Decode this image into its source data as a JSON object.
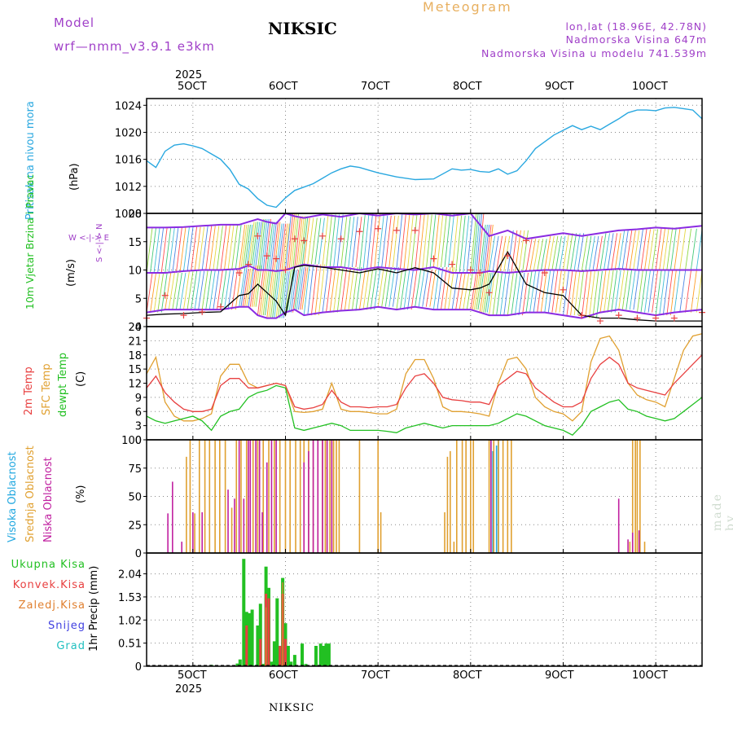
{
  "header": {
    "model_label": "Model",
    "model_name": "wrf—nmm_v3.9.1 e3km",
    "station_title": "NIKSIC",
    "meteogram_label": "Meteogram",
    "coords": "lon,lat (18.96E, 42.78N)",
    "elevation": "Nadmorska Visina 647m",
    "model_elevation": "Nadmorska Visina u modelu 741.539m"
  },
  "colors": {
    "pressure": "#2aa8e0",
    "wind_speed": "#000000",
    "wind_gust": "#e84040",
    "wind_dir_high": "#8a2be2",
    "t2m": "#e84040",
    "tsfc": "#e0a030",
    "dewpoint": "#22c022",
    "cloud_high": "#22a8e0",
    "cloud_mid": "#e0a030",
    "cloud_low": "#c020a0",
    "precip_total": "#22c022",
    "precip_conv": "#e84040",
    "precip_frozen": "#e08030",
    "precip_snow": "#4040e0",
    "precip_hail": "#20c0c0"
  },
  "axis": {
    "year_top": "2025",
    "year_bottom": "2025",
    "day_labels": [
      "5OCT",
      "6OCT",
      "7OCT",
      "8OCT",
      "9OCT",
      "10OCT"
    ],
    "days_start": 4.5,
    "days_end": 10.5
  },
  "footer": {
    "station": "NIKSIC",
    "credit": "made by Angel"
  },
  "chart_data": [
    {
      "type": "line",
      "panel": "pressure",
      "title": "Pritisak na nivou mora",
      "ylabel": "(hPa)",
      "ylim": [
        1008,
        1025
      ],
      "yticks": [
        "1008",
        "1012",
        "1016",
        "1020",
        "1024"
      ],
      "x": [
        4.5,
        4.6,
        4.7,
        4.8,
        4.9,
        5.0,
        5.1,
        5.2,
        5.3,
        5.4,
        5.5,
        5.6,
        5.7,
        5.8,
        5.9,
        6.0,
        6.1,
        6.2,
        6.3,
        6.4,
        6.5,
        6.6,
        6.7,
        6.8,
        6.9,
        7.0,
        7.2,
        7.4,
        7.6,
        7.8,
        7.9,
        8.0,
        8.1,
        8.2,
        8.3,
        8.4,
        8.5,
        8.6,
        8.7,
        8.8,
        8.9,
        9.0,
        9.1,
        9.2,
        9.3,
        9.4,
        9.5,
        9.6,
        9.7,
        9.8,
        9.9,
        10.0,
        10.1,
        10.2,
        10.3,
        10.4,
        10.5
      ],
      "series": [
        {
          "name": "MSLP",
          "values": [
            1015.8,
            1014.8,
            1017.2,
            1018.1,
            1018.3,
            1018.0,
            1017.6,
            1016.8,
            1016.0,
            1014.5,
            1012.3,
            1011.6,
            1010.2,
            1009.2,
            1008.9,
            1010.3,
            1011.4,
            1011.9,
            1012.4,
            1013.2,
            1014.0,
            1014.6,
            1015.0,
            1014.8,
            1014.4,
            1014.0,
            1013.4,
            1013.0,
            1013.1,
            1014.6,
            1014.4,
            1014.5,
            1014.2,
            1014.1,
            1014.6,
            1013.8,
            1014.3,
            1015.8,
            1017.6,
            1018.6,
            1019.6,
            1020.3,
            1021.0,
            1020.4,
            1020.9,
            1020.4,
            1021.2,
            1022.0,
            1022.9,
            1023.3,
            1023.3,
            1023.2,
            1023.6,
            1023.7,
            1023.5,
            1023.3,
            1022.0
          ]
        }
      ]
    },
    {
      "type": "line",
      "panel": "wind",
      "title": "10m Vjetar Brzina i Pravac",
      "ylabel": "(m/s)",
      "compass_label": "W <-|-> E",
      "compass_label_ns": "S <-|-> N",
      "ylim": [
        0,
        20
      ],
      "yticks": [
        "0",
        "5",
        "10",
        "15",
        "20"
      ],
      "x": [
        4.5,
        4.7,
        4.9,
        5.1,
        5.3,
        5.5,
        5.6,
        5.7,
        5.8,
        5.9,
        6.0,
        6.1,
        6.2,
        6.4,
        6.6,
        6.8,
        7.0,
        7.2,
        7.4,
        7.6,
        7.8,
        8.0,
        8.1,
        8.2,
        8.4,
        8.6,
        8.8,
        9.0,
        9.2,
        9.4,
        9.6,
        9.8,
        10.0,
        10.2,
        10.5
      ],
      "series": [
        {
          "name": "speed",
          "values": [
            2,
            2.2,
            2.3,
            2.5,
            2.6,
            5.5,
            5.8,
            7.5,
            6,
            4.5,
            2,
            10.5,
            10.8,
            10.5,
            10,
            9.5,
            10.2,
            9.5,
            10.4,
            9.5,
            6.8,
            6.5,
            6.8,
            7.5,
            13.2,
            7.5,
            6,
            5.5,
            2,
            1.5,
            1.5,
            1.2,
            1,
            1,
            1
          ]
        },
        {
          "name": "gust",
          "values": [
            1.5,
            5.5,
            2,
            2.6,
            3.5,
            9.5,
            11,
            16,
            12.5,
            12,
            10,
            15.5,
            15.2,
            16,
            15.5,
            16.8,
            17.3,
            17,
            17,
            12,
            11,
            10,
            9.5,
            6,
            12.5,
            15.2,
            9.5,
            6.5,
            2,
            1,
            2,
            1.5,
            1.5,
            1.5,
            2.5
          ]
        },
        {
          "name": "direction_high",
          "values": [
            17.5,
            17.5,
            17.6,
            17.8,
            18,
            18,
            18.5,
            19,
            18.5,
            18.2,
            20,
            19.5,
            19.2,
            19.8,
            19.4,
            20,
            19.6,
            20,
            19.8,
            20,
            19.6,
            20,
            18,
            16,
            17,
            15.5,
            16,
            16.5,
            16,
            16.5,
            17,
            17.2,
            17.5,
            17.3,
            17.8
          ]
        },
        {
          "name": "direction_mid",
          "values": [
            9.5,
            9.5,
            9.8,
            10,
            10,
            10.2,
            10.8,
            10,
            10,
            9.8,
            10,
            10.5,
            11,
            10.5,
            10.5,
            10,
            10.5,
            10.2,
            10,
            10.5,
            9.5,
            9.5,
            9.5,
            9.8,
            9.5,
            9.8,
            10,
            10,
            9.8,
            10,
            10.2,
            10,
            10,
            10,
            10
          ]
        },
        {
          "name": "direction_low",
          "values": [
            2.5,
            3,
            3,
            3,
            3,
            3.5,
            3.5,
            2,
            1.5,
            1.5,
            2.5,
            3,
            2,
            2.5,
            2.8,
            3,
            3.5,
            3,
            3.5,
            3,
            3,
            3,
            2.5,
            2,
            2,
            2.5,
            2.5,
            2,
            1.5,
            2.5,
            3,
            2.5,
            2,
            2.5,
            3
          ]
        }
      ]
    },
    {
      "type": "line",
      "panel": "temperature",
      "labels": [
        "2m Temp",
        "SFC Temp",
        "dewpt Temp"
      ],
      "ylabel": "(C)",
      "ylim": [
        0,
        24
      ],
      "yticks": [
        "0",
        "3",
        "6",
        "9",
        "12",
        "15",
        "18",
        "21",
        "24"
      ],
      "x": [
        4.5,
        4.6,
        4.7,
        4.8,
        4.9,
        5.0,
        5.1,
        5.2,
        5.3,
        5.4,
        5.5,
        5.6,
        5.7,
        5.8,
        5.9,
        6.0,
        6.1,
        6.2,
        6.3,
        6.4,
        6.5,
        6.6,
        6.7,
        6.8,
        6.9,
        7.0,
        7.1,
        7.2,
        7.3,
        7.4,
        7.5,
        7.6,
        7.7,
        7.8,
        7.9,
        8.0,
        8.1,
        8.2,
        8.3,
        8.4,
        8.5,
        8.6,
        8.7,
        8.8,
        8.9,
        9.0,
        9.1,
        9.2,
        9.3,
        9.4,
        9.5,
        9.6,
        9.7,
        9.8,
        9.9,
        10.0,
        10.1,
        10.2,
        10.3,
        10.4,
        10.5
      ],
      "series": [
        {
          "name": "2m Temp",
          "values": [
            11,
            13.5,
            10,
            8,
            6.5,
            6,
            6,
            6.5,
            11.5,
            13,
            13,
            11,
            11,
            11.5,
            12,
            11.5,
            7,
            6.5,
            6.8,
            7.5,
            10.5,
            8,
            7,
            7,
            6.8,
            7,
            7,
            7.5,
            11,
            13.5,
            14,
            12,
            9,
            8.5,
            8.3,
            8,
            8,
            7.5,
            11.5,
            13,
            14.5,
            14,
            11,
            9.5,
            8,
            7,
            7,
            8,
            13,
            16,
            17.5,
            16,
            12,
            11,
            10.5,
            10,
            9.5,
            12,
            14,
            16,
            18
          ]
        },
        {
          "name": "SFC Temp",
          "values": [
            14,
            17.5,
            8,
            5,
            4,
            4,
            4.5,
            5.5,
            13.5,
            16,
            16,
            12,
            11,
            11.5,
            12,
            11.5,
            6,
            5.8,
            6,
            6.5,
            12,
            6.5,
            6,
            6,
            5.8,
            5.5,
            5.5,
            6.5,
            14,
            17,
            17,
            13,
            7,
            6,
            6,
            5.8,
            5.5,
            5,
            12,
            17,
            17.5,
            15,
            9,
            7,
            6,
            5.5,
            4,
            6,
            16.5,
            21.5,
            22,
            19,
            12,
            9.5,
            8.5,
            8,
            7,
            13,
            19,
            22,
            22.5
          ]
        },
        {
          "name": "dewpt Temp",
          "values": [
            5,
            4,
            3.5,
            4,
            4.5,
            5,
            4,
            2,
            5,
            6,
            6.5,
            9,
            10,
            10.5,
            11.5,
            11,
            2.5,
            2,
            2.5,
            3,
            3.5,
            3,
            2,
            2,
            2,
            2,
            1.8,
            1.5,
            2.5,
            3,
            3.5,
            3,
            2.5,
            3,
            3,
            3,
            3,
            3,
            3.5,
            4.5,
            5.5,
            5,
            4,
            3,
            2.5,
            2,
            1,
            3,
            6,
            7,
            8,
            8.5,
            6.5,
            6,
            5,
            4.5,
            4,
            4.5,
            6,
            7.5,
            9
          ]
        }
      ]
    },
    {
      "type": "bar",
      "panel": "cloud",
      "labels": [
        "Visoka Oblacnost",
        "Srednja Oblacnost",
        "Niska Oblacnost"
      ],
      "ylabel": "(%)",
      "ylim": [
        0,
        100
      ],
      "yticks": [
        "0",
        "25",
        "50",
        "75",
        "100"
      ],
      "series": [
        {
          "name": "Visoka",
          "x": [
            8.22,
            8.24,
            8.28,
            8.3
          ],
          "values": [
            100,
            90,
            95,
            100
          ]
        },
        {
          "name": "Srednja",
          "x": [
            4.93,
            4.97,
            5.02,
            5.07,
            5.13,
            5.18,
            5.24,
            5.29,
            5.35,
            5.42,
            5.47,
            5.52,
            5.58,
            5.65,
            5.7,
            5.76,
            5.82,
            5.88,
            5.94,
            6.0,
            6.05,
            6.11,
            6.16,
            6.2,
            6.25,
            6.3,
            6.35,
            6.4,
            6.43,
            6.45,
            6.48,
            6.5,
            6.52,
            6.55,
            6.58,
            6.8,
            7.0,
            7.03,
            7.72,
            7.75,
            7.78,
            7.82,
            7.85,
            7.91,
            7.95,
            8.0,
            8.03,
            8.2,
            8.25,
            8.3,
            8.35,
            8.4,
            8.44,
            9.72,
            9.75,
            9.78,
            9.8,
            9.83,
            9.88
          ],
          "values": [
            85,
            100,
            35,
            100,
            100,
            100,
            100,
            100,
            100,
            40,
            100,
            100,
            100,
            100,
            100,
            100,
            100,
            100,
            100,
            100,
            100,
            100,
            100,
            100,
            100,
            100,
            100,
            100,
            100,
            100,
            100,
            100,
            100,
            100,
            100,
            100,
            100,
            36,
            36,
            85,
            90,
            10,
            100,
            100,
            100,
            100,
            100,
            100,
            100,
            100,
            100,
            100,
            100,
            10,
            100,
            100,
            100,
            100,
            10
          ]
        },
        {
          "name": "Niska",
          "x": [
            4.73,
            4.78,
            4.88,
            5.0,
            5.1,
            5.38,
            5.45,
            5.5,
            5.55,
            5.6,
            5.62,
            5.68,
            5.72,
            5.75,
            5.8,
            5.85,
            5.9,
            6.2,
            6.25,
            6.3,
            6.35,
            6.4,
            6.45,
            6.5,
            8.22,
            9.6,
            9.7,
            9.75,
            9.82
          ],
          "values": [
            35,
            63,
            10,
            36,
            36,
            56,
            48,
            100,
            48,
            100,
            100,
            100,
            100,
            36,
            80,
            100,
            100,
            80,
            90,
            100,
            100,
            100,
            100,
            100,
            100,
            48,
            12,
            18,
            20
          ]
        }
      ]
    },
    {
      "type": "bar",
      "panel": "precip",
      "labels": [
        "Ukupna Kisa",
        "Konvek.Kisa",
        "Zaledj.Kisa",
        "Snijeg",
        "Grad"
      ],
      "ylabel": "1hr Precip (mm)",
      "ylim": [
        0,
        2.5
      ],
      "yticks": [
        "0",
        "0.51",
        "1.02",
        "1.53",
        "2.04"
      ],
      "series": [
        {
          "name": "Ukupna",
          "x": [
            5.2,
            5.48,
            5.51,
            5.55,
            5.58,
            5.61,
            5.64,
            5.7,
            5.73,
            5.76,
            5.79,
            5.82,
            5.85,
            5.88,
            5.91,
            5.94,
            5.97,
            6.0,
            6.03,
            6.06,
            6.1,
            6.18,
            6.22,
            6.33,
            6.38,
            6.41,
            6.44,
            6.47
          ],
          "values": [
            0.03,
            0.06,
            0.15,
            2.37,
            1.2,
            1.17,
            1.25,
            0.9,
            1.38,
            0.05,
            2.2,
            1.73,
            0.1,
            0.55,
            1.5,
            0.45,
            1.95,
            0.95,
            0.45,
            0.1,
            0.25,
            0.5,
            0.05,
            0.45,
            0.5,
            0.45,
            0.5,
            0.5
          ]
        },
        {
          "name": "Konvek",
          "x": [
            5.58,
            5.73,
            5.79,
            5.82,
            5.94,
            5.97,
            6.0
          ],
          "values": [
            0.9,
            0.6,
            1.6,
            1.5,
            0.45,
            1.6,
            0.6
          ]
        },
        {
          "name": "Zaledj",
          "x": [
            5.79,
            5.97
          ],
          "values": [
            1.3,
            1.85
          ]
        }
      ]
    }
  ]
}
